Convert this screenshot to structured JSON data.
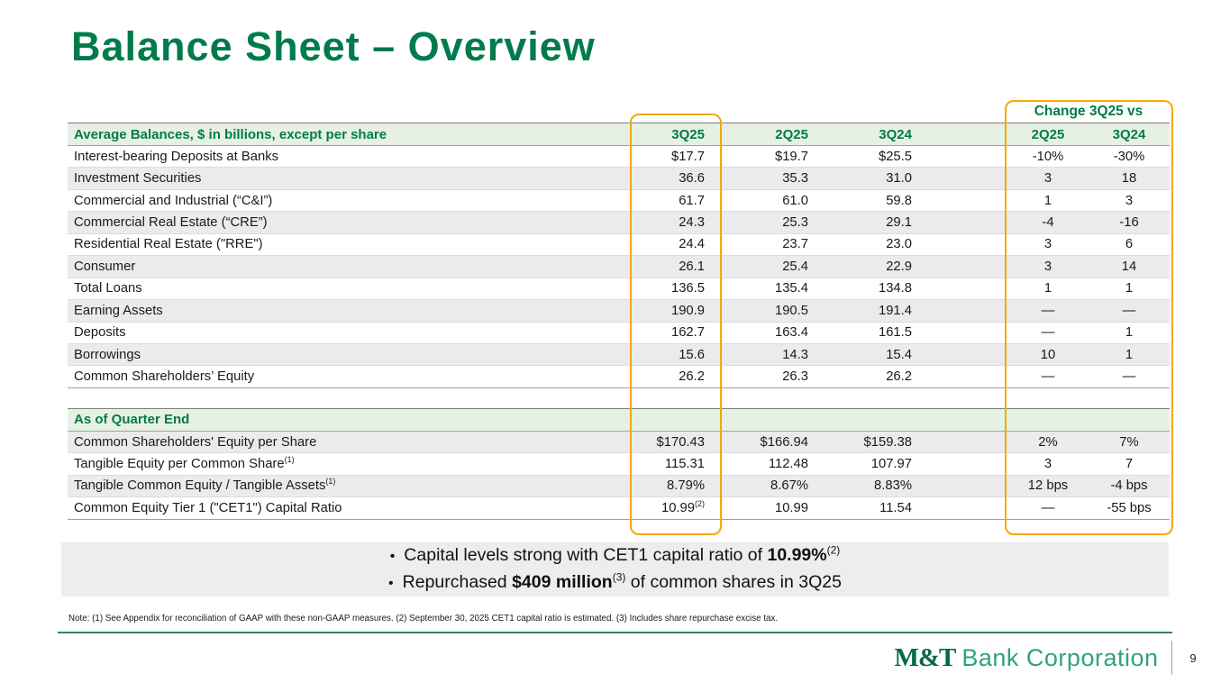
{
  "title": "Balance Sheet – Overview",
  "table": {
    "change_header": "Change 3Q25 vs",
    "columns": [
      "3Q25",
      "2Q25",
      "3Q24",
      "2Q25",
      "3Q24"
    ],
    "sections": [
      {
        "header": "Average Balances, $ in billions, except per share",
        "rows": [
          {
            "label": "Interest-bearing Deposits at Banks",
            "values": [
              "$17.7",
              "$19.7",
              "$25.5",
              "-10%",
              "-30%"
            ]
          },
          {
            "label": "Investment Securities",
            "values": [
              "36.6",
              "35.3",
              "31.0",
              "3",
              "18"
            ]
          },
          {
            "label": "Commercial and Industrial (“C&I”)",
            "values": [
              "61.7",
              "61.0",
              "59.8",
              "1",
              "3"
            ]
          },
          {
            "label": "Commercial Real Estate (“CRE”)",
            "values": [
              "24.3",
              "25.3",
              "29.1",
              "-4",
              "-16"
            ]
          },
          {
            "label": "Residential Real Estate (\"RRE\")",
            "values": [
              "24.4",
              "23.7",
              "23.0",
              "3",
              "6"
            ]
          },
          {
            "label": "Consumer",
            "values": [
              "26.1",
              "25.4",
              "22.9",
              "3",
              "14"
            ]
          },
          {
            "label": "Total Loans",
            "values": [
              "136.5",
              "135.4",
              "134.8",
              "1",
              "1"
            ]
          },
          {
            "label": "Earning Assets",
            "values": [
              "190.9",
              "190.5",
              "191.4",
              "—",
              "—"
            ]
          },
          {
            "label": "Deposits",
            "values": [
              "162.7",
              "163.4",
              "161.5",
              "—",
              "1"
            ]
          },
          {
            "label": "Borrowings",
            "values": [
              "15.6",
              "14.3",
              "15.4",
              "10",
              "1"
            ]
          },
          {
            "label": "Common Shareholders’ Equity",
            "values": [
              "26.2",
              "26.3",
              "26.2",
              "—",
              "—"
            ]
          }
        ]
      },
      {
        "header": "As of Quarter End",
        "rows": [
          {
            "label": "Common Shareholders' Equity per Share",
            "values": [
              "$170.43",
              "$166.94",
              "$159.38",
              "2%",
              "7%"
            ]
          },
          {
            "label": "Tangible Equity per Common Share",
            "label_sup": "(1)",
            "values": [
              "115.31",
              "112.48",
              "107.97",
              "3",
              "7"
            ]
          },
          {
            "label": "Tangible Common Equity / Tangible Assets",
            "label_sup": "(1)",
            "values": [
              "8.79%",
              "8.67%",
              "8.83%",
              "12 bps",
              "-4 bps"
            ]
          },
          {
            "label": "Common Equity Tier 1 (\"CET1\") Capital Ratio",
            "values": [
              "10.99",
              "10.99",
              "11.54",
              "—",
              "-55 bps"
            ],
            "value_sups": [
              "(2)",
              "",
              "",
              "",
              ""
            ]
          }
        ]
      }
    ]
  },
  "bullets": [
    {
      "marker": "•",
      "pre": "Capital levels strong with CET1 capital ratio of ",
      "bold": "10.99%",
      "sup": "(2)",
      "post": ""
    },
    {
      "marker": "•",
      "pre": "Repurchased ",
      "bold": "$409 million",
      "sup": "(3)",
      "post": " of common shares in 3Q25"
    }
  ],
  "footnote": "Note: (1) See Appendix for reconciliation of GAAP with these non-GAAP measures. (2) September 30, 2025 CET1 capital ratio is estimated. (3) Includes share repurchase excise tax.",
  "footer": {
    "logo_bold": "M&T",
    "logo_rest": "Bank Corporation",
    "page_number": "9"
  },
  "colors": {
    "brand_green": "#007B4B",
    "band_green": "#E7F1E3",
    "highlight_gold": "#F5A800",
    "row_alt_gray": "#EBEBEB",
    "bullet_box_gray": "#EDEDED",
    "divider_green": "#3A7D69",
    "logo_green": "#2FA37C"
  }
}
